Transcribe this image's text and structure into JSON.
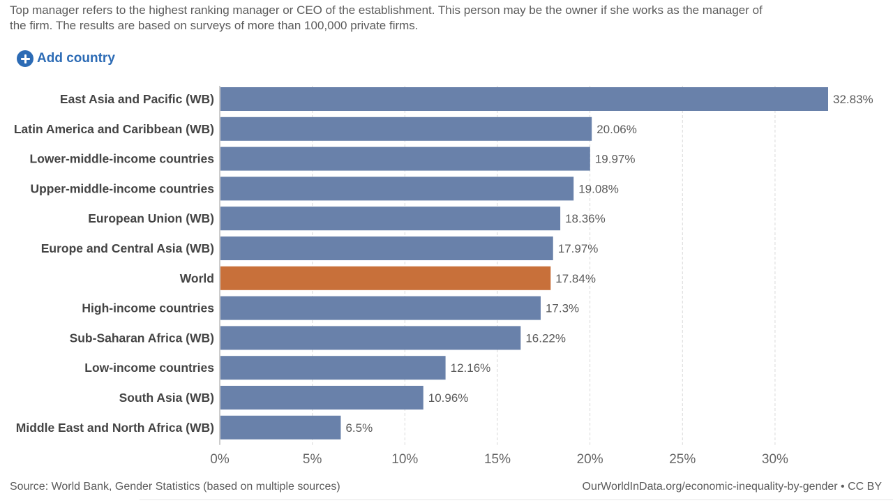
{
  "subtitle": "Top manager refers to the highest ranking manager or CEO of the establishment. This person may be the owner if she works as the manager of the firm. The results are based on surveys of more than 100,000 private firms.",
  "add_country": {
    "label": "Add country",
    "icon": "plus-circle-icon"
  },
  "colors": {
    "bar": "#6981aa",
    "highlight": "#c8703a",
    "grid": "#d9d9d9",
    "axis": "#999999",
    "label": "#444444",
    "value": "#5b5b5b"
  },
  "chart_data": {
    "type": "bar",
    "orientation": "horizontal",
    "categories": [
      "East Asia and Pacific (WB)",
      "Latin America and Caribbean (WB)",
      "Lower-middle-income countries",
      "Upper-middle-income countries",
      "European Union (WB)",
      "Europe and Central Asia (WB)",
      "World",
      "High-income countries",
      "Sub-Saharan Africa (WB)",
      "Low-income countries",
      "South Asia (WB)",
      "Middle East and North Africa (WB)"
    ],
    "values": [
      32.83,
      20.06,
      19.97,
      19.08,
      18.36,
      17.97,
      17.84,
      17.3,
      16.22,
      12.16,
      10.96,
      6.5
    ],
    "value_labels": [
      "32.83%",
      "20.06%",
      "19.97%",
      "19.08%",
      "18.36%",
      "17.97%",
      "17.84%",
      "17.3%",
      "16.22%",
      "12.16%",
      "10.96%",
      "6.5%"
    ],
    "highlight": "World",
    "xlim": [
      0,
      33
    ],
    "xticks": [
      0,
      5,
      10,
      15,
      20,
      25,
      30
    ],
    "xtick_labels": [
      "0%",
      "5%",
      "10%",
      "15%",
      "20%",
      "25%",
      "30%"
    ],
    "grid": "vertical-dashed"
  },
  "footer": {
    "source": "Source: World Bank, Gender Statistics (based on multiple sources)",
    "credit_link": "OurWorldInData.org/economic-inequality-by-gender",
    "license": " • CC BY"
  }
}
